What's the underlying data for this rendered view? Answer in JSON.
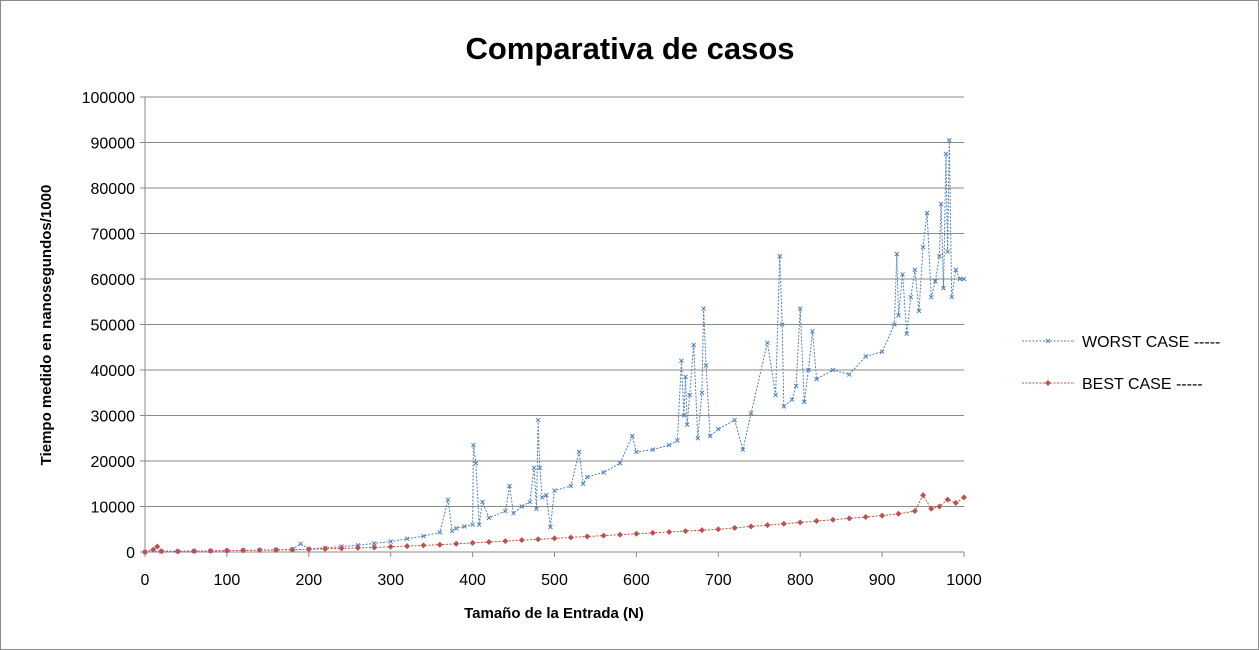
{
  "chart_data": {
    "type": "line",
    "title": "Comparativa de casos",
    "xlabel": "Tamaño  de la Entrada (N)",
    "ylabel": "Tiempo medido en nanosegundos/1000",
    "xlim": [
      0,
      1000
    ],
    "ylim": [
      0,
      100000
    ],
    "xticks": [
      "0",
      "100",
      "200",
      "300",
      "400",
      "500",
      "600",
      "700",
      "800",
      "900",
      "1000"
    ],
    "yticks": [
      "0",
      "10000",
      "20000",
      "30000",
      "40000",
      "50000",
      "60000",
      "70000",
      "80000",
      "90000",
      "100000"
    ],
    "grid": "horizontal",
    "legend_position": "right",
    "series": [
      {
        "name": "WORST CASE -----",
        "color": "#4f81bd",
        "marker": "x",
        "x": [
          0,
          20,
          40,
          60,
          80,
          100,
          120,
          140,
          160,
          180,
          190,
          200,
          220,
          240,
          260,
          280,
          300,
          320,
          340,
          360,
          370,
          375,
          380,
          390,
          400,
          401,
          404,
          408,
          412,
          420,
          440,
          445,
          450,
          460,
          470,
          475,
          478,
          480,
          482,
          485,
          490,
          495,
          500,
          520,
          530,
          535,
          540,
          560,
          580,
          595,
          600,
          620,
          640,
          650,
          655,
          658,
          660,
          662,
          665,
          670,
          675,
          680,
          682,
          685,
          690,
          700,
          720,
          730,
          740,
          760,
          770,
          775,
          778,
          780,
          790,
          795,
          800,
          805,
          810,
          815,
          820,
          840,
          860,
          880,
          900,
          915,
          918,
          920,
          925,
          930,
          935,
          940,
          945,
          950,
          955,
          960,
          965,
          970,
          972,
          975,
          978,
          980,
          982,
          985,
          990,
          995,
          1000
        ],
        "y": [
          0,
          100,
          150,
          200,
          250,
          300,
          350,
          400,
          500,
          600,
          1800,
          700,
          900,
          1200,
          1500,
          1900,
          2300,
          2900,
          3500,
          4300,
          11500,
          4600,
          5200,
          5600,
          6000,
          23500,
          19500,
          6000,
          11000,
          7500,
          9000,
          14500,
          8500,
          10000,
          11000,
          18500,
          9500,
          29000,
          18500,
          12000,
          12500,
          5500,
          13500,
          14500,
          22000,
          15000,
          16500,
          17500,
          19500,
          25500,
          22000,
          22500,
          23500,
          24500,
          42000,
          30000,
          38500,
          28000,
          34500,
          45500,
          25000,
          35000,
          53500,
          41000,
          25500,
          27000,
          29000,
          22500,
          30500,
          46000,
          34500,
          65000,
          50000,
          32000,
          33500,
          36500,
          53500,
          33000,
          40000,
          48500,
          38000,
          40000,
          39000,
          43000,
          44000,
          50000,
          65500,
          52000,
          61000,
          48000,
          56000,
          62000,
          53000,
          67000,
          74500,
          56000,
          59500,
          65000,
          76500,
          58000,
          87500,
          66000,
          90500,
          56000,
          62000,
          60000,
          60000
        ]
      },
      {
        "name": "BEST CASE -----",
        "color": "#c0504d",
        "marker": "diamond",
        "x": [
          0,
          10,
          15,
          20,
          40,
          60,
          80,
          100,
          120,
          140,
          160,
          180,
          200,
          220,
          240,
          260,
          280,
          300,
          320,
          340,
          360,
          380,
          400,
          420,
          440,
          460,
          480,
          500,
          520,
          540,
          560,
          580,
          600,
          620,
          640,
          660,
          680,
          700,
          720,
          740,
          760,
          780,
          800,
          820,
          840,
          860,
          880,
          900,
          920,
          940,
          950,
          960,
          970,
          980,
          990,
          1000
        ],
        "y": [
          0,
          500,
          1200,
          200,
          150,
          200,
          250,
          300,
          350,
          400,
          450,
          500,
          600,
          700,
          800,
          900,
          1000,
          1150,
          1300,
          1450,
          1600,
          1800,
          2000,
          2200,
          2400,
          2600,
          2800,
          3000,
          3200,
          3400,
          3600,
          3800,
          4000,
          4200,
          4400,
          4600,
          4800,
          5000,
          5300,
          5600,
          5900,
          6200,
          6500,
          6800,
          7100,
          7400,
          7700,
          8000,
          8400,
          9000,
          12500,
          9500,
          10000,
          11500,
          10800,
          12000
        ]
      }
    ]
  }
}
